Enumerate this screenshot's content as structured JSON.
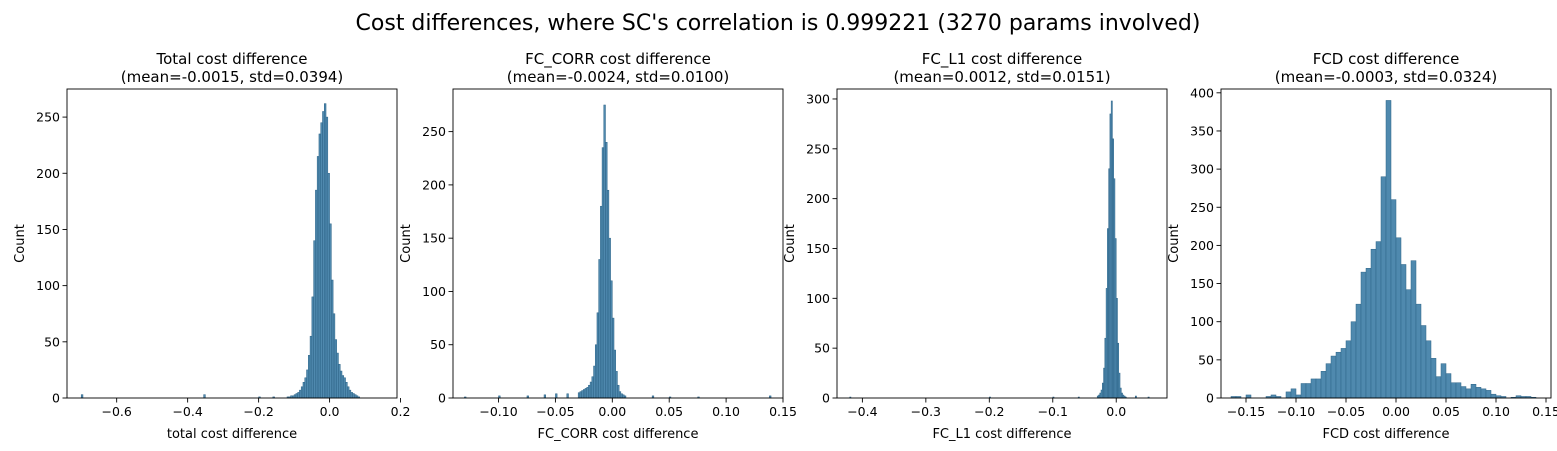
{
  "suptitle": "Cost differences, where SC's correlation is 0.999221 (3270 params involved)",
  "colors": {
    "bar_fill": "#4f89ae",
    "bar_edge": "#2d6488",
    "axis": "#000000",
    "background": "#ffffff"
  },
  "chart_data": [
    {
      "type": "bar",
      "title": "Total cost difference",
      "subtitle": "(mean=-0.0015, std=0.0394)",
      "xlabel": "total cost difference",
      "ylabel": "Count",
      "xlim": [
        -0.74,
        0.19
      ],
      "ylim": [
        0,
        275
      ],
      "xticks": [
        -0.6,
        -0.4,
        -0.2,
        0.0,
        0.2
      ],
      "xtick_labels": [
        "−0.6",
        "−0.4",
        "−0.2",
        "0.0",
        "0.2"
      ],
      "yticks": [
        0,
        50,
        100,
        150,
        200,
        250
      ],
      "bin_edges_start": -0.12,
      "bin_width": 0.005,
      "counts": [
        1,
        1,
        2,
        2,
        3,
        4,
        5,
        7,
        10,
        14,
        18,
        25,
        38,
        55,
        90,
        140,
        185,
        215,
        235,
        245,
        255,
        262,
        250,
        200,
        155,
        105,
        75,
        52,
        40,
        30,
        24,
        20,
        18,
        14,
        10,
        7,
        5,
        4,
        3,
        2,
        1
      ],
      "outliers": [
        {
          "x": -0.7,
          "count": 3
        },
        {
          "x": -0.355,
          "count": 3
        },
        {
          "x": -0.2,
          "count": 1
        },
        {
          "x": -0.16,
          "count": 1
        }
      ]
    },
    {
      "type": "bar",
      "title": "FC_CORR cost difference",
      "subtitle": "(mean=-0.0024, std=0.0100)",
      "xlabel": "FC_CORR cost difference",
      "ylabel": "Count",
      "xlim": [
        -0.14,
        0.15
      ],
      "ylim": [
        0,
        290
      ],
      "xticks": [
        -0.1,
        -0.05,
        0.0,
        0.05,
        0.1,
        0.15
      ],
      "xtick_labels": [
        "−0.10",
        "−0.05",
        "0.00",
        "0.05",
        "0.10",
        "0.15"
      ],
      "yticks": [
        0,
        50,
        100,
        150,
        200,
        250
      ],
      "bin_edges_start": -0.03,
      "bin_width": 0.0015,
      "counts": [
        5,
        6,
        7,
        8,
        9,
        10,
        12,
        15,
        20,
        30,
        50,
        80,
        130,
        180,
        235,
        275,
        240,
        195,
        150,
        110,
        75,
        45,
        25,
        12,
        6,
        4,
        3,
        2
      ],
      "outliers": [
        {
          "x": -0.13,
          "count": 1
        },
        {
          "x": -0.1,
          "count": 2
        },
        {
          "x": -0.075,
          "count": 2
        },
        {
          "x": -0.06,
          "count": 3
        },
        {
          "x": -0.05,
          "count": 4
        },
        {
          "x": -0.04,
          "count": 4
        },
        {
          "x": 0.035,
          "count": 2
        },
        {
          "x": 0.05,
          "count": 1
        },
        {
          "x": 0.075,
          "count": 1
        },
        {
          "x": 0.138,
          "count": 2
        }
      ]
    },
    {
      "type": "bar",
      "title": "FC_L1 cost difference",
      "subtitle": "(mean=0.0012, std=0.0151)",
      "xlabel": "FC_L1 cost difference",
      "ylabel": "Count",
      "xlim": [
        -0.44,
        0.08
      ],
      "ylim": [
        0,
        310
      ],
      "xticks": [
        -0.4,
        -0.3,
        -0.2,
        -0.1,
        0.0
      ],
      "xtick_labels": [
        "−0.4",
        "−0.3",
        "−0.2",
        "−0.1",
        "0.0"
      ],
      "yticks": [
        0,
        50,
        100,
        150,
        200,
        250,
        300
      ],
      "bin_edges_start": -0.03,
      "bin_width": 0.002,
      "counts": [
        2,
        3,
        5,
        8,
        15,
        30,
        60,
        110,
        170,
        230,
        285,
        298,
        260,
        220,
        160,
        100,
        55,
        25,
        10,
        5,
        3,
        2,
        1
      ],
      "outliers": [
        {
          "x": -0.42,
          "count": 1
        },
        {
          "x": -0.2,
          "count": 1
        },
        {
          "x": -0.1,
          "count": 1
        },
        {
          "x": -0.06,
          "count": 1
        },
        {
          "x": 0.03,
          "count": 2
        },
        {
          "x": 0.05,
          "count": 1
        }
      ]
    },
    {
      "type": "bar",
      "title": "FCD cost difference",
      "subtitle": "(mean=-0.0003, std=0.0324)",
      "xlabel": "FCD cost difference",
      "ylabel": "Count",
      "xlim": [
        -0.175,
        0.155
      ],
      "ylim": [
        0,
        405
      ],
      "xticks": [
        -0.15,
        -0.1,
        -0.05,
        0.0,
        0.05,
        0.1,
        0.15
      ],
      "xtick_labels": [
        "−0.15",
        "−0.10",
        "−0.05",
        "0.00",
        "0.05",
        "0.10",
        "0.15"
      ],
      "yticks": [
        0,
        50,
        100,
        150,
        200,
        250,
        300,
        350,
        400
      ],
      "bin_edges_start": -0.165,
      "bin_width": 0.005,
      "counts": [
        2,
        2,
        0,
        4,
        0,
        0,
        0,
        2,
        4,
        2,
        0,
        8,
        12,
        4,
        19,
        19,
        25,
        25,
        35,
        45,
        55,
        60,
        65,
        75,
        100,
        123,
        165,
        170,
        195,
        205,
        290,
        390,
        260,
        210,
        175,
        142,
        180,
        123,
        95,
        75,
        52,
        28,
        45,
        32,
        20,
        20,
        15,
        12,
        18,
        14,
        12,
        10,
        5,
        3,
        2,
        0,
        1,
        3,
        2,
        2,
        1
      ]
    }
  ]
}
